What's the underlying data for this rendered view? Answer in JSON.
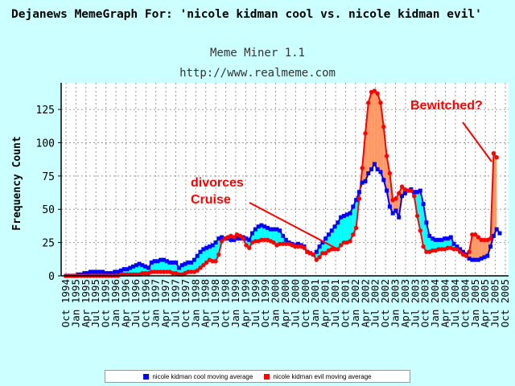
{
  "title": "Dejanews MemeGraph For: 'nicole kidman cool vs. nicole kidman evil'",
  "subtitle": "Meme Miner 1.1",
  "url": "http://www.realmeme.com",
  "colors": {
    "cool_line": "#0000ff",
    "evil_line": "#ff0000",
    "cool_fill": "#00ffff",
    "evil_fill": "#ff9966",
    "annotation": "#ff0000",
    "page_bg": "#ccffff",
    "plot_bg": "#ffffff"
  },
  "legend": {
    "cool": "nicole kidman cool moving average",
    "evil": "nicole kidman evil moving average"
  },
  "chart_data": {
    "type": "line",
    "title": "Dejanews MemeGraph For: 'nicole kidman cool vs. nicole kidman evil'",
    "ylabel": "Frequency Count",
    "xlabel": "",
    "ylim": [
      0,
      145
    ],
    "yticks": [
      0,
      25,
      50,
      75,
      100,
      125
    ],
    "grid": true,
    "legend_position": "bottom",
    "x_tick_labels": [
      "Oct 1994",
      "Jan 1995",
      "Apr 1995",
      "Jul 1995",
      "Oct 1995",
      "Jan 1996",
      "Apr 1996",
      "Jul 1996",
      "Oct 1996",
      "Jan 1997",
      "Apr 1997",
      "Jul 1997",
      "Oct 1997",
      "Jan 1998",
      "Apr 1998",
      "Jul 1998",
      "Oct 1998",
      "Jan 1999",
      "Apr 1999",
      "Jul 1999",
      "Oct 1999",
      "Jan 2000",
      "Apr 2000",
      "Jul 2000",
      "Oct 2000",
      "Jan 2001",
      "Apr 2001",
      "Jul 2001",
      "Oct 2001",
      "Jan 2002",
      "Apr 2002",
      "Jul 2002",
      "Oct 2002",
      "Jan 2003",
      "Apr 2003",
      "Jul 2003",
      "Oct 2003",
      "Jan 2004",
      "Apr 2004",
      "Jul 2004",
      "Oct 2004",
      "Jan 2005",
      "Apr 2005",
      "Jul 2005",
      "Oct 2005"
    ],
    "series": [
      {
        "name": "nicole kidman cool moving average",
        "values": [
          0,
          0,
          0,
          0,
          1,
          1,
          2,
          2,
          3,
          3,
          3,
          3,
          3,
          2,
          2,
          2,
          3,
          3,
          4,
          5,
          5,
          6,
          7,
          8,
          9,
          8,
          7,
          6,
          10,
          11,
          11,
          12,
          12,
          11,
          10,
          10,
          10,
          6,
          8,
          9,
          10,
          10,
          12,
          15,
          18,
          20,
          21,
          22,
          23,
          25,
          28,
          29,
          28,
          28,
          27,
          27,
          28,
          28,
          29,
          28,
          27,
          32,
          35,
          37,
          38,
          37,
          36,
          35,
          35,
          35,
          34,
          30,
          27,
          25,
          24,
          23,
          24,
          23,
          22,
          18,
          17,
          16,
          18,
          22,
          25,
          28,
          31,
          34,
          37,
          40,
          44,
          45,
          46,
          47,
          52,
          57,
          63,
          70,
          71,
          77,
          80,
          84,
          80,
          78,
          72,
          64,
          52,
          47,
          49,
          44,
          60,
          62,
          64,
          65,
          63,
          63,
          64,
          54,
          40,
          30,
          28,
          27,
          27,
          27,
          28,
          28,
          29,
          24,
          22,
          20,
          18,
          16,
          13,
          12,
          12,
          12,
          13,
          14,
          15,
          22,
          30,
          35,
          32
        ]
      },
      {
        "name": "nicole kidman evil moving average",
        "values": [
          0,
          0,
          0,
          0,
          0,
          0,
          0,
          0,
          0,
          0,
          0,
          0,
          0,
          0,
          0,
          0,
          0,
          0,
          1,
          1,
          1,
          1,
          1,
          1,
          1,
          2,
          2,
          2,
          3,
          3,
          3,
          3,
          3,
          3,
          3,
          2,
          2,
          1,
          1,
          2,
          3,
          3,
          3,
          4,
          6,
          8,
          10,
          12,
          11,
          11,
          16,
          26,
          28,
          29,
          30,
          29,
          31,
          30,
          28,
          23,
          21,
          25,
          26,
          26,
          27,
          27,
          27,
          26,
          25,
          23,
          24,
          24,
          24,
          24,
          23,
          22,
          22,
          22,
          21,
          18,
          17,
          16,
          12,
          14,
          17,
          17,
          19,
          20,
          20,
          20,
          23,
          25,
          25,
          26,
          31,
          36,
          58,
          81,
          107,
          130,
          138,
          139,
          137,
          130,
          112,
          90,
          77,
          57,
          58,
          62,
          67,
          65,
          64,
          64,
          60,
          45,
          34,
          22,
          18,
          18,
          19,
          19,
          20,
          20,
          20,
          21,
          21,
          20,
          20,
          18,
          16,
          15,
          18,
          31,
          31,
          29,
          27,
          27,
          27,
          28,
          92,
          89
        ]
      }
    ],
    "annotations": [
      "divorces\nCruise",
      "Bewitched?"
    ]
  },
  "annotations": {
    "divorces": "divorces",
    "cruise": "Cruise",
    "bewitched": "Bewitched?"
  }
}
